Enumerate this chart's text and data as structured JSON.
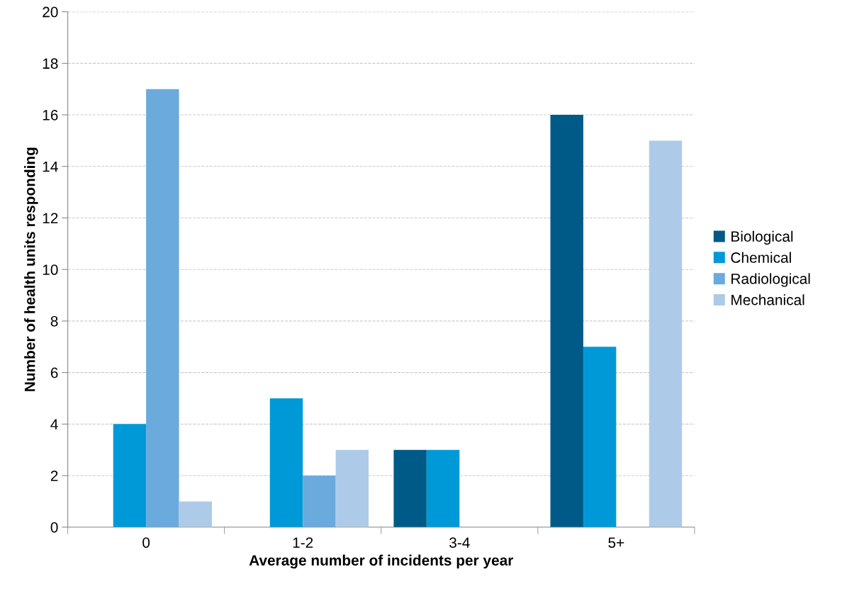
{
  "chart_data": {
    "type": "bar",
    "xlabel": "Average number of incidents per year",
    "ylabel": "Number of health units responding",
    "categories": [
      "0",
      "1-2",
      "3-4",
      "5+"
    ],
    "series": [
      {
        "name": "Biological",
        "color": "#005a87",
        "values": [
          0,
          0,
          3,
          16
        ]
      },
      {
        "name": "Chemical",
        "color": "#0099d8",
        "values": [
          4,
          5,
          3,
          7
        ]
      },
      {
        "name": "Radiological",
        "color": "#6aaadc",
        "values": [
          17,
          2,
          0,
          0
        ]
      },
      {
        "name": "Mechanical",
        "color": "#adcbe8",
        "values": [
          1,
          3,
          0,
          15
        ]
      }
    ],
    "ylim": [
      0,
      20
    ],
    "yticks": [
      0,
      2,
      4,
      6,
      8,
      10,
      12,
      14,
      16,
      18,
      20
    ],
    "grid": "y",
    "legend": "right"
  }
}
